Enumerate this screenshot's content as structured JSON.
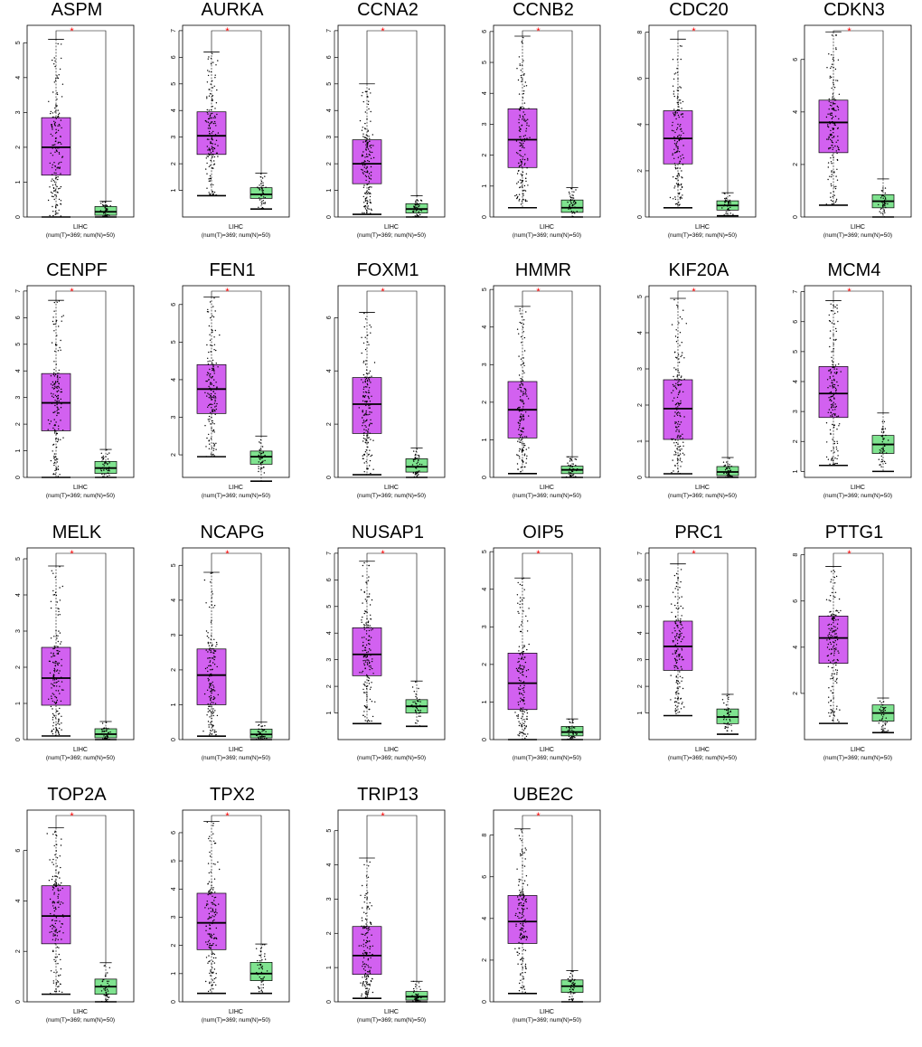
{
  "figure": {
    "cancer_label": "LIHC",
    "sample_label": "(num(T)=369; num(N)=50)",
    "significance_mark": "*",
    "colors": {
      "tumor": "#d261f0",
      "normal": "#7fe38f",
      "star": "#ff0000",
      "points": "#000000"
    }
  },
  "chart_data": [
    {
      "type": "box",
      "title": "ASPM",
      "ylim": [
        0,
        5.5
      ],
      "ticks": [
        0,
        1,
        2,
        3,
        4,
        5
      ],
      "series": [
        {
          "name": "T",
          "q1": 1.2,
          "median": 2.0,
          "q3": 2.85,
          "whisker_low": 0,
          "whisker_high": 5.1
        },
        {
          "name": "N",
          "q1": 0.05,
          "median": 0.15,
          "q3": 0.3,
          "whisker_low": 0,
          "whisker_high": 0.45
        }
      ]
    },
    {
      "type": "box",
      "title": "AURKA",
      "ylim": [
        0,
        7.2
      ],
      "ticks": [
        1,
        2,
        3,
        4,
        5,
        6,
        7
      ],
      "series": [
        {
          "name": "T",
          "q1": 2.35,
          "median": 3.05,
          "q3": 3.95,
          "whisker_low": 0.8,
          "whisker_high": 6.2
        },
        {
          "name": "N",
          "q1": 0.7,
          "median": 0.85,
          "q3": 1.1,
          "whisker_low": 0.3,
          "whisker_high": 1.65
        }
      ]
    },
    {
      "type": "box",
      "title": "CCNA2",
      "ylim": [
        0,
        7.2
      ],
      "ticks": [
        0,
        1,
        2,
        3,
        4,
        5,
        6,
        7
      ],
      "series": [
        {
          "name": "T",
          "q1": 1.25,
          "median": 2.0,
          "q3": 2.9,
          "whisker_low": 0.1,
          "whisker_high": 5.0
        },
        {
          "name": "N",
          "q1": 0.15,
          "median": 0.3,
          "q3": 0.5,
          "whisker_low": 0,
          "whisker_high": 0.8
        }
      ]
    },
    {
      "type": "box",
      "title": "CCNB2",
      "ylim": [
        0,
        6.2
      ],
      "ticks": [
        0,
        1,
        2,
        3,
        4,
        5,
        6
      ],
      "series": [
        {
          "name": "T",
          "q1": 1.6,
          "median": 2.5,
          "q3": 3.5,
          "whisker_low": 0.3,
          "whisker_high": 5.85
        },
        {
          "name": "N",
          "q1": 0.15,
          "median": 0.3,
          "q3": 0.55,
          "whisker_low": 0,
          "whisker_high": 0.95
        }
      ]
    },
    {
      "type": "box",
      "title": "CDC20",
      "ylim": [
        0,
        8.3
      ],
      "ticks": [
        0,
        2,
        4,
        6,
        8
      ],
      "series": [
        {
          "name": "T",
          "q1": 2.3,
          "median": 3.4,
          "q3": 4.6,
          "whisker_low": 0.4,
          "whisker_high": 7.7
        },
        {
          "name": "N",
          "q1": 0.3,
          "median": 0.5,
          "q3": 0.7,
          "whisker_low": 0.05,
          "whisker_high": 1.05
        }
      ]
    },
    {
      "type": "box",
      "title": "CDKN3",
      "ylim": [
        0,
        7.3
      ],
      "ticks": [
        0,
        2,
        4,
        6
      ],
      "series": [
        {
          "name": "T",
          "q1": 2.45,
          "median": 3.6,
          "q3": 4.45,
          "whisker_low": 0.45,
          "whisker_high": 7.05
        },
        {
          "name": "N",
          "q1": 0.35,
          "median": 0.6,
          "q3": 0.85,
          "whisker_low": 0,
          "whisker_high": 1.45
        }
      ]
    },
    {
      "type": "box",
      "title": "CENPF",
      "ylim": [
        0,
        7.2
      ],
      "ticks": [
        0,
        1,
        2,
        3,
        4,
        5,
        6,
        7
      ],
      "series": [
        {
          "name": "T",
          "q1": 1.75,
          "median": 2.8,
          "q3": 3.9,
          "whisker_low": 0,
          "whisker_high": 6.65
        },
        {
          "name": "N",
          "q1": 0.15,
          "median": 0.35,
          "q3": 0.6,
          "whisker_low": 0,
          "whisker_high": 1.05
        }
      ]
    },
    {
      "type": "box",
      "title": "FEN1",
      "ylim": [
        1.4,
        6.5
      ],
      "ticks": [
        2,
        3,
        4,
        5,
        6
      ],
      "series": [
        {
          "name": "T",
          "q1": 3.1,
          "median": 3.75,
          "q3": 4.4,
          "whisker_low": 1.95,
          "whisker_high": 6.2
        },
        {
          "name": "N",
          "q1": 1.75,
          "median": 1.95,
          "q3": 2.1,
          "whisker_low": 1.3,
          "whisker_high": 2.5
        }
      ]
    },
    {
      "type": "box",
      "title": "FOXM1",
      "ylim": [
        0,
        7.2
      ],
      "ticks": [
        0,
        2,
        4,
        6
      ],
      "series": [
        {
          "name": "T",
          "q1": 1.65,
          "median": 2.75,
          "q3": 3.75,
          "whisker_low": 0.1,
          "whisker_high": 6.2
        },
        {
          "name": "N",
          "q1": 0.2,
          "median": 0.4,
          "q3": 0.7,
          "whisker_low": 0,
          "whisker_high": 1.1
        }
      ]
    },
    {
      "type": "box",
      "title": "HMMR",
      "ylim": [
        0,
        5.1
      ],
      "ticks": [
        0,
        1,
        2,
        3,
        4,
        5
      ],
      "series": [
        {
          "name": "T",
          "q1": 1.05,
          "median": 1.8,
          "q3": 2.55,
          "whisker_low": 0.1,
          "whisker_high": 4.55
        },
        {
          "name": "N",
          "q1": 0.1,
          "median": 0.2,
          "q3": 0.3,
          "whisker_low": 0,
          "whisker_high": 0.55
        }
      ]
    },
    {
      "type": "box",
      "title": "KIF20A",
      "ylim": [
        0,
        5.3
      ],
      "ticks": [
        0,
        1,
        2,
        3,
        4,
        5
      ],
      "series": [
        {
          "name": "T",
          "q1": 1.05,
          "median": 1.9,
          "q3": 2.7,
          "whisker_low": 0.1,
          "whisker_high": 4.95
        },
        {
          "name": "N",
          "q1": 0.05,
          "median": 0.15,
          "q3": 0.3,
          "whisker_low": 0,
          "whisker_high": 0.55
        }
      ]
    },
    {
      "type": "box",
      "title": "MCM4",
      "ylim": [
        0.8,
        7.2
      ],
      "ticks": [
        1,
        2,
        3,
        4,
        5,
        6,
        7
      ],
      "series": [
        {
          "name": "T",
          "q1": 2.8,
          "median": 3.6,
          "q3": 4.5,
          "whisker_low": 1.2,
          "whisker_high": 6.7
        },
        {
          "name": "N",
          "q1": 1.6,
          "median": 1.9,
          "q3": 2.2,
          "whisker_low": 1.0,
          "whisker_high": 2.95
        }
      ]
    },
    {
      "type": "box",
      "title": "MELK",
      "ylim": [
        0,
        5.3
      ],
      "ticks": [
        0,
        1,
        2,
        3,
        4,
        5
      ],
      "series": [
        {
          "name": "T",
          "q1": 0.95,
          "median": 1.7,
          "q3": 2.55,
          "whisker_low": 0.1,
          "whisker_high": 4.8
        },
        {
          "name": "N",
          "q1": 0.05,
          "median": 0.15,
          "q3": 0.3,
          "whisker_low": 0,
          "whisker_high": 0.5
        }
      ]
    },
    {
      "type": "box",
      "title": "NCAPG",
      "ylim": [
        0,
        5.5
      ],
      "ticks": [
        0,
        1,
        2,
        3,
        4,
        5
      ],
      "series": [
        {
          "name": "T",
          "q1": 1.0,
          "median": 1.85,
          "q3": 2.6,
          "whisker_low": 0.1,
          "whisker_high": 4.8
        },
        {
          "name": "N",
          "q1": 0.05,
          "median": 0.15,
          "q3": 0.3,
          "whisker_low": 0,
          "whisker_high": 0.5
        }
      ]
    },
    {
      "type": "box",
      "title": "NUSAP1",
      "ylim": [
        0,
        7.2
      ],
      "ticks": [
        1,
        2,
        3,
        4,
        5,
        6,
        7
      ],
      "series": [
        {
          "name": "T",
          "q1": 2.4,
          "median": 3.2,
          "q3": 4.2,
          "whisker_low": 0.6,
          "whisker_high": 6.7
        },
        {
          "name": "N",
          "q1": 1.0,
          "median": 1.25,
          "q3": 1.5,
          "whisker_low": 0.5,
          "whisker_high": 2.2
        }
      ]
    },
    {
      "type": "box",
      "title": "OIP5",
      "ylim": [
        0,
        5.1
      ],
      "ticks": [
        0,
        1,
        2,
        3,
        4,
        5
      ],
      "series": [
        {
          "name": "T",
          "q1": 0.8,
          "median": 1.5,
          "q3": 2.3,
          "whisker_low": 0,
          "whisker_high": 4.3
        },
        {
          "name": "N",
          "q1": 0.1,
          "median": 0.2,
          "q3": 0.35,
          "whisker_low": 0,
          "whisker_high": 0.55
        }
      ]
    },
    {
      "type": "box",
      "title": "PRC1",
      "ylim": [
        0,
        7.2
      ],
      "ticks": [
        1,
        2,
        3,
        4,
        5,
        6,
        7
      ],
      "series": [
        {
          "name": "T",
          "q1": 2.6,
          "median": 3.5,
          "q3": 4.45,
          "whisker_low": 0.9,
          "whisker_high": 6.6
        },
        {
          "name": "N",
          "q1": 0.6,
          "median": 0.85,
          "q3": 1.15,
          "whisker_low": 0.2,
          "whisker_high": 1.7
        }
      ]
    },
    {
      "type": "box",
      "title": "PTTG1",
      "ylim": [
        0,
        8.3
      ],
      "ticks": [
        2,
        4,
        6,
        8
      ],
      "series": [
        {
          "name": "T",
          "q1": 3.3,
          "median": 4.4,
          "q3": 5.35,
          "whisker_low": 0.7,
          "whisker_high": 7.5
        },
        {
          "name": "N",
          "q1": 0.8,
          "median": 1.15,
          "q3": 1.5,
          "whisker_low": 0.3,
          "whisker_high": 1.8
        }
      ]
    },
    {
      "type": "box",
      "title": "TOP2A",
      "ylim": [
        0,
        7.6
      ],
      "ticks": [
        0,
        2,
        4,
        6
      ],
      "series": [
        {
          "name": "T",
          "q1": 2.3,
          "median": 3.4,
          "q3": 4.6,
          "whisker_low": 0.3,
          "whisker_high": 6.9
        },
        {
          "name": "N",
          "q1": 0.3,
          "median": 0.6,
          "q3": 0.9,
          "whisker_low": 0,
          "whisker_high": 1.55
        }
      ]
    },
    {
      "type": "box",
      "title": "TPX2",
      "ylim": [
        0,
        6.8
      ],
      "ticks": [
        0,
        1,
        2,
        3,
        4,
        5,
        6
      ],
      "series": [
        {
          "name": "T",
          "q1": 1.85,
          "median": 2.8,
          "q3": 3.85,
          "whisker_low": 0.3,
          "whisker_high": 6.4
        },
        {
          "name": "N",
          "q1": 0.75,
          "median": 1.0,
          "q3": 1.4,
          "whisker_low": 0.3,
          "whisker_high": 2.05
        }
      ]
    },
    {
      "type": "box",
      "title": "TRIP13",
      "ylim": [
        0,
        5.6
      ],
      "ticks": [
        0,
        1,
        2,
        3,
        4,
        5
      ],
      "series": [
        {
          "name": "T",
          "q1": 0.8,
          "median": 1.35,
          "q3": 2.2,
          "whisker_low": 0.1,
          "whisker_high": 4.2
        },
        {
          "name": "N",
          "q1": 0.05,
          "median": 0.15,
          "q3": 0.3,
          "whisker_low": 0,
          "whisker_high": 0.6
        }
      ]
    },
    {
      "type": "box",
      "title": "UBE2C",
      "ylim": [
        0,
        9.2
      ],
      "ticks": [
        0,
        2,
        4,
        6,
        8
      ],
      "series": [
        {
          "name": "T",
          "q1": 2.8,
          "median": 3.85,
          "q3": 5.1,
          "whisker_low": 0.4,
          "whisker_high": 8.3
        },
        {
          "name": "N",
          "q1": 0.45,
          "median": 0.75,
          "q3": 1.05,
          "whisker_low": 0,
          "whisker_high": 1.5
        }
      ]
    }
  ]
}
